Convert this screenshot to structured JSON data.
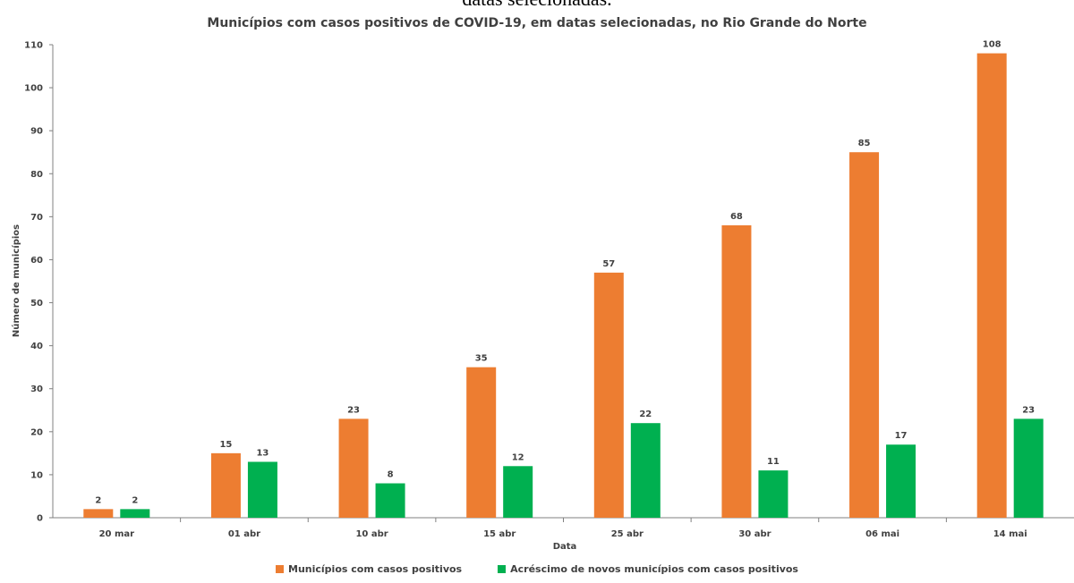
{
  "header": {
    "crop_text": "datas selecionadas.",
    "title": "Municípios com casos positivos de COVID-19, em datas selecionadas, no Rio Grande do Norte"
  },
  "colors": {
    "series1": "#ED7D31",
    "series2": "#00B050",
    "axis": "#808080"
  },
  "chart_data": {
    "type": "bar",
    "title": "Municípios com casos positivos de COVID-19, em datas selecionadas, no Rio Grande do Norte",
    "xlabel": "Data",
    "ylabel": "Número de municípios",
    "ylim": [
      0,
      110
    ],
    "yticks": [
      0,
      10,
      20,
      30,
      40,
      50,
      60,
      70,
      80,
      90,
      100,
      110
    ],
    "categories": [
      "20 mar",
      "01 abr",
      "10 abr",
      "15 abr",
      "25 abr",
      "30 abr",
      "06 mai",
      "14 mai"
    ],
    "series": [
      {
        "name": "Municípios com casos positivos",
        "values": [
          2,
          15,
          23,
          35,
          57,
          68,
          85,
          108
        ]
      },
      {
        "name": "Acréscimo de novos municípios com casos positivos",
        "values": [
          2,
          13,
          8,
          12,
          22,
          11,
          17,
          23
        ]
      }
    ],
    "legend_position": "bottom",
    "grid": false
  }
}
